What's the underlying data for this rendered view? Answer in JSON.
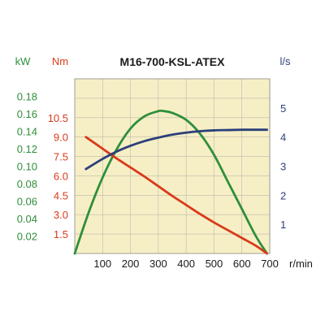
{
  "chart_data": {
    "type": "line",
    "title": "M16-700-KSL-ATEX",
    "background_color": "#f6efc6",
    "grid": true,
    "grid_color": "#bbb9a8",
    "x_axis": {
      "label": "r/min",
      "range": [
        0,
        700
      ],
      "ticks": [
        100,
        200,
        300,
        400,
        500,
        600,
        700
      ],
      "tick_labels": [
        "100",
        "200",
        "300",
        "400",
        "500",
        "600",
        "700"
      ],
      "color": "#1a1a1a"
    },
    "y_axes": [
      {
        "id": "power",
        "label": "kW",
        "range": [
          0,
          0.2
        ],
        "ticks": [
          0.02,
          0.04,
          0.06,
          0.08,
          0.1,
          0.12,
          0.14,
          0.16,
          0.18
        ],
        "tick_labels": [
          "0.02",
          "0.04",
          "0.06",
          "0.08",
          "0.10",
          "0.12",
          "0.14",
          "0.16",
          "0.18"
        ],
        "color": "#2f8f3a",
        "side": "left-outer"
      },
      {
        "id": "torque",
        "label": "Nm",
        "range": [
          0,
          13.5
        ],
        "ticks": [
          1.5,
          3.0,
          4.5,
          6.0,
          7.5,
          9.0,
          10.5
        ],
        "tick_labels": [
          "1.5",
          "3.0",
          "4.5",
          "6.0",
          "7.5",
          "9.0",
          "10.5"
        ],
        "color": "#d93a1a",
        "side": "left-inner"
      },
      {
        "id": "flow",
        "label": "l/s",
        "range": [
          0,
          6
        ],
        "ticks": [
          1,
          2,
          3,
          4,
          5
        ],
        "tick_labels": [
          "1",
          "2",
          "3",
          "4",
          "5"
        ],
        "color": "#2b3f7a",
        "side": "right"
      }
    ],
    "series": [
      {
        "axis": "power",
        "color": "#2f8f3a",
        "x": [
          0,
          50,
          100,
          150,
          200,
          250,
          300,
          320,
          350,
          400,
          450,
          500,
          550,
          600,
          650,
          690
        ],
        "y": [
          0.0,
          0.047,
          0.087,
          0.119,
          0.143,
          0.157,
          0.163,
          0.163,
          0.161,
          0.153,
          0.137,
          0.113,
          0.082,
          0.051,
          0.02,
          0.0
        ]
      },
      {
        "axis": "torque",
        "color": "#d93a1a",
        "x": [
          40,
          100,
          150,
          200,
          250,
          300,
          350,
          400,
          450,
          500,
          550,
          600,
          650,
          690
        ],
        "y": [
          9.0,
          8.1,
          7.35,
          6.65,
          5.95,
          5.2,
          4.45,
          3.75,
          3.05,
          2.4,
          1.8,
          1.2,
          0.6,
          0.0
        ]
      },
      {
        "axis": "flow",
        "color": "#2b3f7a",
        "x": [
          40,
          100,
          150,
          200,
          250,
          300,
          350,
          400,
          450,
          500,
          550,
          600,
          650,
          690
        ],
        "y": [
          2.9,
          3.25,
          3.5,
          3.7,
          3.86,
          3.98,
          4.08,
          4.15,
          4.2,
          4.23,
          4.24,
          4.25,
          4.25,
          4.25
        ]
      }
    ]
  }
}
